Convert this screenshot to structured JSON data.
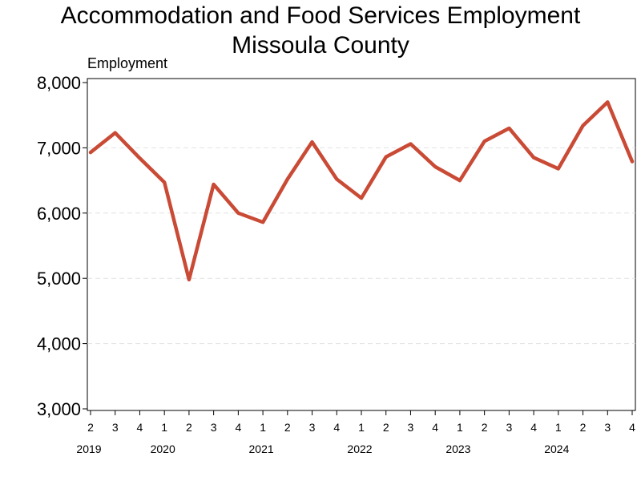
{
  "chart_data": {
    "type": "line",
    "title": [
      "Accommodation and Food Services Employment",
      "Missoula County"
    ],
    "ylabel": "Employment",
    "xlabel": "",
    "ylim": [
      3000,
      8000
    ],
    "yticks": [
      "3,000",
      "4,000",
      "5,000",
      "6,000",
      "7,000",
      "8,000"
    ],
    "ytick_values": [
      3000,
      4000,
      5000,
      6000,
      7000,
      8000
    ],
    "grid": "horizontal-dashed",
    "categories": [
      "2",
      "3",
      "4",
      "1",
      "2",
      "3",
      "4",
      "1",
      "2",
      "3",
      "4",
      "1",
      "2",
      "3",
      "4",
      "1",
      "2",
      "3",
      "4",
      "1",
      "2",
      "3",
      "4"
    ],
    "years": [
      {
        "label": "2019",
        "index": 0
      },
      {
        "label": "2020",
        "index": 3
      },
      {
        "label": "2021",
        "index": 7
      },
      {
        "label": "2022",
        "index": 11
      },
      {
        "label": "2023",
        "index": 15
      },
      {
        "label": "2024",
        "index": 19
      }
    ],
    "series": [
      {
        "color": "#c94a35",
        "values": [
          6930,
          7230,
          6840,
          6470,
          4980,
          6440,
          6000,
          5860,
          6520,
          7090,
          6520,
          6230,
          6860,
          7060,
          6710,
          6500,
          7100,
          7300,
          6850,
          6680,
          7340,
          7700,
          6790
        ]
      }
    ]
  }
}
